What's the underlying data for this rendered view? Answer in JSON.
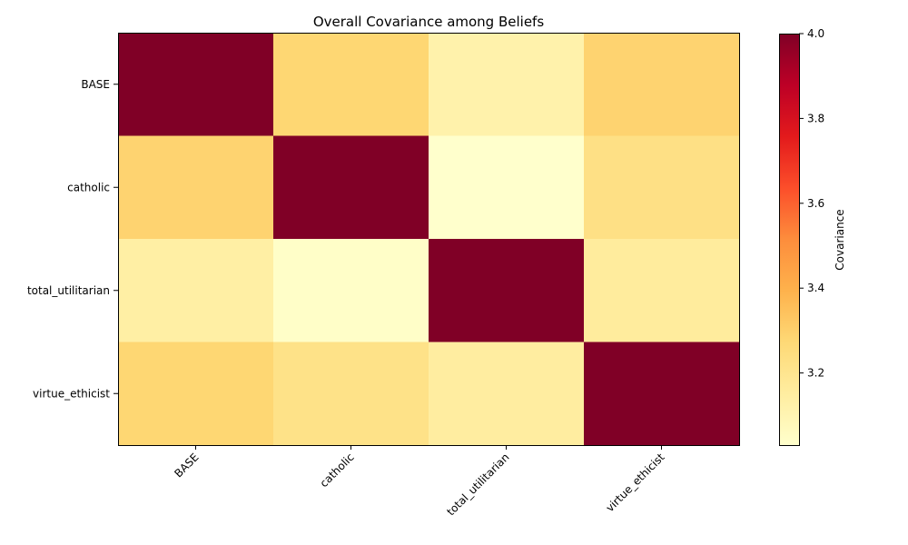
{
  "chart_data": {
    "type": "heatmap",
    "title": "Overall Covariance among Beliefs",
    "x_categories": [
      "BASE",
      "catholic",
      "total_utilitarian",
      "virtue_ethicist"
    ],
    "y_categories": [
      "BASE",
      "catholic",
      "total_utilitarian",
      "virtue_ethicist"
    ],
    "values": [
      [
        4.0,
        3.28,
        3.12,
        3.29
      ],
      [
        3.29,
        4.0,
        3.03,
        3.23
      ],
      [
        3.14,
        3.04,
        4.0,
        3.16
      ],
      [
        3.28,
        3.22,
        3.15,
        4.0
      ]
    ],
    "colormap": "YlOrRd",
    "colorbar": {
      "label": "Covariance",
      "range": [
        3.03,
        4.0
      ],
      "ticks": [
        3.2,
        3.4,
        3.6,
        3.8,
        4.0
      ],
      "tick_labels": [
        "3.2",
        "3.4",
        "3.6",
        "3.8",
        "4.0"
      ],
      "placement": "right"
    },
    "grid": false,
    "xtick_rotation_deg": 45
  }
}
